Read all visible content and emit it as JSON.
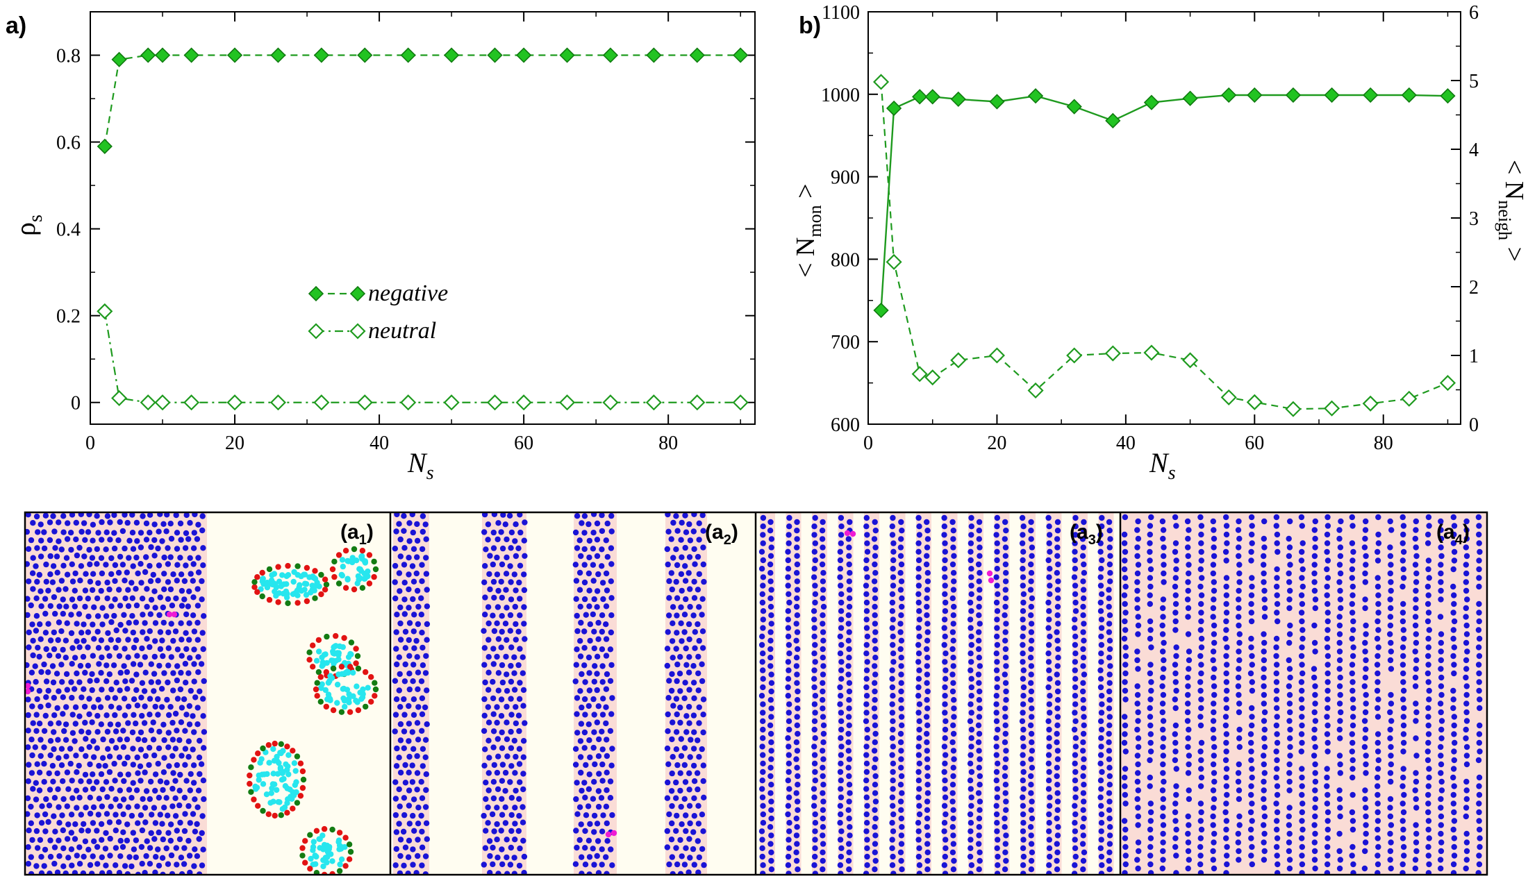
{
  "colors": {
    "green": "#22c322",
    "green_line": "#1e9a1e",
    "blue": "#1a13d6",
    "pink_bg": "#fadcd6",
    "cream_bg": "#fffdf1",
    "cyan": "#27e6ee",
    "red": "#e21313",
    "dgreen": "#137c13",
    "magenta": "#ee1cd4",
    "violet": "#d78ee3"
  },
  "chart_data": [
    {
      "id": "a",
      "panel_label": "a)",
      "type": "line",
      "title": "",
      "xlabel": "N",
      "xlabel_sub": "s",
      "ylabel": "ρ",
      "ylabel_sub": "s",
      "xlim": [
        0,
        92
      ],
      "ylim": [
        -0.05,
        0.9
      ],
      "xticks": [
        0,
        20,
        40,
        60,
        80
      ],
      "xtick_labels": [
        "0",
        "20",
        "40",
        "60",
        "80"
      ],
      "yticks": [
        0,
        0.2,
        0.4,
        0.6,
        0.8
      ],
      "ytick_labels": [
        "0",
        "0.2",
        "0.4",
        "0.6",
        "0.8"
      ],
      "series": [
        {
          "name": "negative",
          "x": [
            2,
            4,
            8,
            10,
            14,
            20,
            26,
            32,
            38,
            44,
            50,
            56,
            60,
            66,
            72,
            78,
            84,
            90
          ],
          "values": [
            0.59,
            0.79,
            0.8,
            0.8,
            0.8,
            0.8,
            0.8,
            0.8,
            0.8,
            0.8,
            0.8,
            0.8,
            0.8,
            0.8,
            0.8,
            0.8,
            0.8,
            0.8
          ],
          "marker": "filled-diamond",
          "line": "dashed"
        },
        {
          "name": "neutral",
          "x": [
            2,
            4,
            8,
            10,
            14,
            20,
            26,
            32,
            38,
            44,
            50,
            56,
            60,
            66,
            72,
            78,
            84,
            90
          ],
          "values": [
            0.21,
            0.01,
            0,
            0,
            0,
            0,
            0,
            0,
            0,
            0,
            0,
            0,
            0,
            0,
            0,
            0,
            0,
            0
          ],
          "marker": "open-diamond",
          "line": "dash-dot"
        }
      ],
      "legend": "center"
    },
    {
      "id": "b",
      "panel_label": "b)",
      "type": "line",
      "title": "",
      "xlabel": "N",
      "xlabel_sub": "s",
      "ylabel": "< N",
      "ylabel_sub": "mon",
      "ylabel_close": " >",
      "y2label": "< N",
      "y2label_sub": "neigh",
      "y2label_close": " >",
      "xlim": [
        0,
        92
      ],
      "ylim": [
        600,
        1100
      ],
      "y2lim": [
        0,
        6
      ],
      "xticks": [
        0,
        20,
        40,
        60,
        80
      ],
      "xtick_labels": [
        "0",
        "20",
        "40",
        "60",
        "80"
      ],
      "yticks": [
        600,
        700,
        800,
        900,
        1000,
        1100
      ],
      "ytick_labels": [
        "600",
        "700",
        "800",
        "900",
        "1000",
        "1100"
      ],
      "y2ticks": [
        0,
        1,
        2,
        3,
        4,
        5,
        6
      ],
      "y2tick_labels": [
        "0",
        "1",
        "2",
        "3",
        "4",
        "5",
        "6"
      ],
      "series": [
        {
          "name": "<N_mon>",
          "axis": "left",
          "x": [
            2,
            4,
            8,
            10,
            14,
            20,
            26,
            32,
            38,
            44,
            50,
            56,
            60,
            66,
            72,
            78,
            84,
            90
          ],
          "values": [
            738,
            983,
            997,
            997,
            994,
            991,
            998,
            985,
            968,
            990,
            995,
            999,
            999,
            999,
            999,
            999,
            999,
            998
          ],
          "marker": "filled-diamond",
          "line": "solid"
        },
        {
          "name": "<N_neigh>",
          "axis": "right",
          "x": [
            2,
            4,
            8,
            10,
            14,
            20,
            26,
            32,
            38,
            44,
            50,
            56,
            60,
            66,
            72,
            78,
            84,
            90
          ],
          "values": [
            4.98,
            2.36,
            0.73,
            0.68,
            0.93,
            1.0,
            0.49,
            1.0,
            1.03,
            1.04,
            0.93,
            0.39,
            0.32,
            0.22,
            0.23,
            0.3,
            0.37,
            0.6
          ],
          "marker": "open-diamond",
          "line": "dashed"
        }
      ]
    }
  ],
  "snapshots": [
    {
      "label": "(a",
      "sub": "1",
      "close": ")"
    },
    {
      "label": "(a",
      "sub": "2",
      "close": ")"
    },
    {
      "label": "(a",
      "sub": "3",
      "close": ")"
    },
    {
      "label": "(a",
      "sub": "4",
      "close": ")"
    }
  ]
}
